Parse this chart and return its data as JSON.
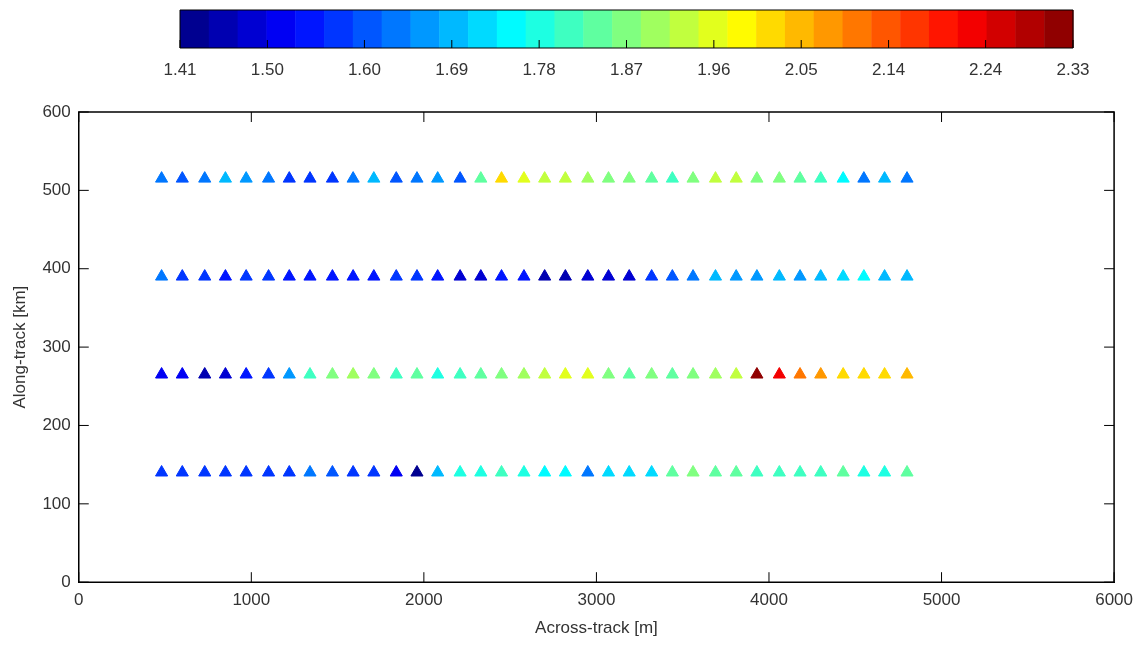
{
  "chart_data": {
    "type": "scatter",
    "xlabel": "Across-track [m]",
    "ylabel": "Along-track [km]",
    "marker": "triangle",
    "grid": false,
    "legend": false,
    "xlim": [
      0,
      6000
    ],
    "xticks": [
      0,
      1000,
      2000,
      3000,
      4000,
      5000,
      6000
    ],
    "ylim": [
      0,
      600
    ],
    "yticks": [
      0,
      100,
      200,
      300,
      400,
      500,
      600
    ],
    "clim": [
      1.41,
      2.33
    ],
    "cticks": [
      1.41,
      {
        "value": 1.5,
        "label": "1.50"
      },
      {
        "value": 1.6,
        "label": "1.60"
      },
      1.69,
      1.78,
      1.87,
      1.96,
      2.05,
      2.14,
      2.24,
      2.33
    ],
    "series": [
      {
        "x": [
          480,
          600,
          730,
          850,
          970,
          1100,
          1220,
          1340,
          1470,
          1590,
          1710,
          1840,
          1960,
          2080,
          2210,
          2330,
          2450,
          2580,
          2700,
          2820,
          2950,
          3070,
          3190,
          3320,
          3440,
          3560,
          3690,
          3810,
          3930,
          4060,
          4180,
          4300,
          4430,
          4550,
          4670,
          4800
        ],
        "values": [
          515,
          515,
          515,
          515,
          515,
          515,
          515,
          515,
          515,
          515,
          515,
          515,
          515,
          515,
          515,
          515,
          515,
          515,
          515,
          515,
          515,
          515,
          515,
          515,
          515,
          515,
          515,
          515,
          515,
          515,
          515,
          515,
          515,
          515,
          515,
          515
        ],
        "cvalues": [
          1.62,
          1.6,
          1.63,
          1.68,
          1.65,
          1.62,
          1.58,
          1.57,
          1.57,
          1.62,
          1.68,
          1.6,
          1.62,
          1.66,
          1.6,
          1.83,
          2.02,
          1.96,
          1.93,
          1.93,
          1.91,
          1.87,
          1.86,
          1.85,
          1.82,
          1.88,
          1.92,
          1.93,
          1.88,
          1.86,
          1.83,
          1.82,
          1.76,
          1.64,
          1.68,
          1.62
        ],
        "colors": [
          "#0077ff",
          "#0056ff",
          "#0077ff",
          "#00b9ff",
          "#0098ff",
          "#0077ff",
          "#0036ff",
          "#0036ff",
          "#0036ff",
          "#0077ff",
          "#00b9ff",
          "#0056ff",
          "#0077ff",
          "#0098ff",
          "#0056ff",
          "#5fffa0",
          "#ffda00",
          "#e2ff1d",
          "#c1ff3e",
          "#c1ff3e",
          "#a0ff5f",
          "#80ff80",
          "#80ff80",
          "#5fffa0",
          "#3effc1",
          "#80ff80",
          "#c1ff3e",
          "#c1ff3e",
          "#80ff80",
          "#80ff80",
          "#5fffa0",
          "#3effc1",
          "#00fbff",
          "#0077ff",
          "#00b9ff",
          "#0077ff"
        ]
      },
      {
        "x": [
          480,
          600,
          730,
          850,
          970,
          1100,
          1220,
          1340,
          1470,
          1590,
          1710,
          1840,
          1960,
          2080,
          2210,
          2330,
          2450,
          2580,
          2700,
          2820,
          2950,
          3070,
          3190,
          3320,
          3440,
          3560,
          3690,
          3810,
          3930,
          4060,
          4180,
          4300,
          4430,
          4550,
          4670,
          4800
        ],
        "values": [
          390,
          390,
          390,
          390,
          390,
          390,
          390,
          390,
          390,
          390,
          390,
          390,
          390,
          390,
          390,
          390,
          390,
          390,
          390,
          390,
          390,
          390,
          390,
          390,
          390,
          390,
          390,
          390,
          390,
          390,
          390,
          390,
          390,
          390,
          390,
          390
        ],
        "cvalues": [
          1.63,
          1.57,
          1.56,
          1.55,
          1.57,
          1.56,
          1.55,
          1.54,
          1.53,
          1.53,
          1.54,
          1.56,
          1.56,
          1.55,
          1.48,
          1.47,
          1.53,
          1.54,
          1.44,
          1.45,
          1.47,
          1.47,
          1.49,
          1.56,
          1.6,
          1.62,
          1.7,
          1.67,
          1.66,
          1.7,
          1.67,
          1.68,
          1.72,
          1.76,
          1.7,
          1.7
        ],
        "colors": [
          "#0077ff",
          "#0036ff",
          "#0036ff",
          "#0015ff",
          "#0036ff",
          "#0036ff",
          "#0015ff",
          "#0015ff",
          "#0015ff",
          "#0015ff",
          "#0015ff",
          "#0036ff",
          "#0036ff",
          "#0015ff",
          "#0000d2",
          "#0000d2",
          "#0015ff",
          "#0015ff",
          "#0000b1",
          "#0000b1",
          "#0000d2",
          "#0000d2",
          "#0000d2",
          "#0036ff",
          "#0056ff",
          "#0077ff",
          "#00b9ff",
          "#0098ff",
          "#0098ff",
          "#00b9ff",
          "#0098ff",
          "#00b9ff",
          "#00daff",
          "#00fbff",
          "#00b9ff",
          "#00b9ff"
        ]
      },
      {
        "x": [
          480,
          600,
          730,
          850,
          970,
          1100,
          1220,
          1340,
          1470,
          1590,
          1710,
          1840,
          1960,
          2080,
          2210,
          2330,
          2450,
          2580,
          2700,
          2820,
          2950,
          3070,
          3190,
          3320,
          3440,
          3560,
          3690,
          3810,
          3930,
          4060,
          4180,
          4300,
          4430,
          4550,
          4670,
          4800
        ],
        "values": [
          265,
          265,
          265,
          265,
          265,
          265,
          265,
          265,
          265,
          265,
          265,
          265,
          265,
          265,
          265,
          265,
          265,
          265,
          265,
          265,
          265,
          265,
          265,
          265,
          265,
          265,
          265,
          265,
          265,
          265,
          265,
          265,
          265,
          265,
          265,
          265
        ],
        "cvalues": [
          1.52,
          1.5,
          1.45,
          1.49,
          1.55,
          1.56,
          1.66,
          1.8,
          1.86,
          1.9,
          1.86,
          1.81,
          1.84,
          1.77,
          1.8,
          1.85,
          1.87,
          1.89,
          1.93,
          1.96,
          1.95,
          1.88,
          1.85,
          1.86,
          1.85,
          1.87,
          1.91,
          1.94,
          2.32,
          2.22,
          2.1,
          2.07,
          2.02,
          2.01,
          2.01,
          2.05
        ],
        "colors": [
          "#0000f3",
          "#0000f3",
          "#0000b1",
          "#0000d2",
          "#0015ff",
          "#0036ff",
          "#0098ff",
          "#3effc1",
          "#80ff80",
          "#a0ff5f",
          "#80ff80",
          "#3effc1",
          "#5fffa0",
          "#1dffe2",
          "#3effc1",
          "#5fffa0",
          "#80ff80",
          "#a0ff5f",
          "#c1ff3e",
          "#e2ff1d",
          "#e2ff1d",
          "#80ff80",
          "#5fffa0",
          "#80ff80",
          "#5fffa0",
          "#80ff80",
          "#a0ff5f",
          "#c1ff3e",
          "#900000",
          "#f30000",
          "#ff7700",
          "#ff9800",
          "#ffda00",
          "#ffda00",
          "#ffda00",
          "#ffb900"
        ]
      },
      {
        "x": [
          480,
          600,
          730,
          850,
          970,
          1100,
          1220,
          1340,
          1470,
          1590,
          1710,
          1840,
          1960,
          2080,
          2210,
          2330,
          2450,
          2580,
          2700,
          2820,
          2950,
          3070,
          3190,
          3320,
          3440,
          3560,
          3690,
          3810,
          3930,
          4060,
          4180,
          4300,
          4430,
          4550,
          4670,
          4800
        ],
        "values": [
          140,
          140,
          140,
          140,
          140,
          140,
          140,
          140,
          140,
          140,
          140,
          140,
          140,
          140,
          140,
          140,
          140,
          140,
          140,
          140,
          140,
          140,
          140,
          140,
          140,
          140,
          140,
          140,
          140,
          140,
          140,
          140,
          140,
          140,
          140,
          140
        ],
        "cvalues": [
          1.56,
          1.56,
          1.56,
          1.56,
          1.58,
          1.56,
          1.58,
          1.63,
          1.6,
          1.58,
          1.58,
          1.5,
          1.42,
          1.68,
          1.78,
          1.79,
          1.8,
          1.78,
          1.75,
          1.76,
          1.64,
          1.71,
          1.72,
          1.71,
          1.83,
          1.86,
          1.84,
          1.83,
          1.82,
          1.81,
          1.81,
          1.82,
          1.83,
          1.78,
          1.79,
          1.85
        ],
        "colors": [
          "#0036ff",
          "#0036ff",
          "#0036ff",
          "#0036ff",
          "#0036ff",
          "#0036ff",
          "#0036ff",
          "#0077ff",
          "#0056ff",
          "#0036ff",
          "#0036ff",
          "#0000f3",
          "#000090",
          "#00b9ff",
          "#1dffe2",
          "#1dffe2",
          "#3effc1",
          "#1dffe2",
          "#00fbff",
          "#00fbff",
          "#0077ff",
          "#00daff",
          "#00daff",
          "#00daff",
          "#5fffa0",
          "#80ff80",
          "#5fffa0",
          "#5fffa0",
          "#3effc1",
          "#3effc1",
          "#3effc1",
          "#3effc1",
          "#5fffa0",
          "#1dffe2",
          "#1dffe2",
          "#5fffa0"
        ]
      }
    ]
  }
}
